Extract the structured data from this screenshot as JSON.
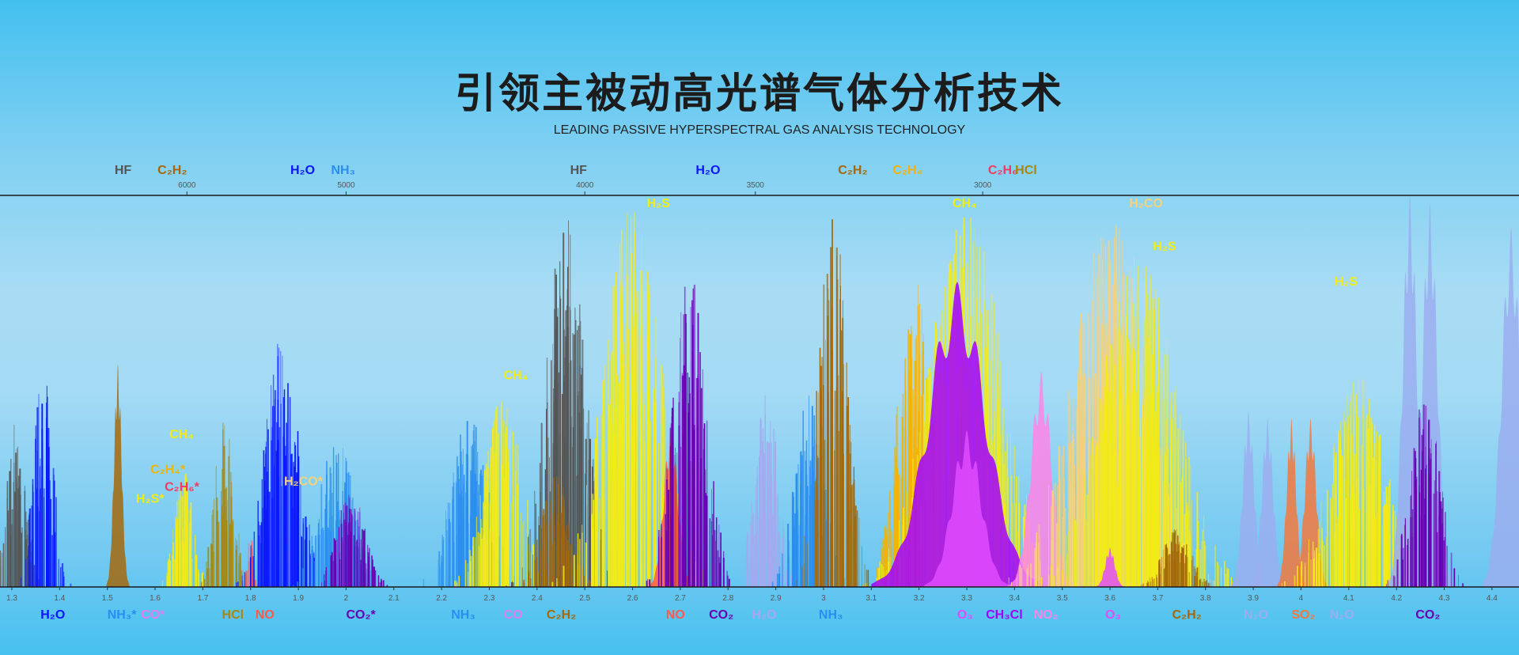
{
  "header": {
    "title": "引领主被动高光谱气体分析技术",
    "subtitle": "LEADING PASSIVE HYPERSPECTRAL GAS ANALYSIS TECHNOLOGY"
  },
  "chart_data": {
    "type": "area",
    "xlabel": "",
    "ylabel": "",
    "xlim": [
      1.28,
      4.46
    ],
    "x_ticks": [
      1.3,
      1.4,
      1.5,
      1.6,
      1.7,
      1.8,
      1.9,
      2.0,
      2.1,
      2.2,
      2.3,
      2.4,
      2.5,
      2.6,
      2.7,
      2.8,
      2.9,
      3.0,
      3.1,
      3.2,
      3.3,
      3.4,
      3.5,
      3.6,
      3.7,
      3.8,
      3.9,
      4.0,
      4.1,
      4.2,
      4.3,
      4.4
    ],
    "top_ticks": [
      6000,
      5000,
      4000,
      3500,
      3000
    ],
    "colors": {
      "H2O": "#0a14ff",
      "NH3": "#2a8ef0",
      "C2H2": "#a4680a",
      "CH4": "#f3ec14",
      "C2H4": "#f6b300",
      "C2H6": "#f23a5e",
      "HCl": "#a8870e",
      "NO": "#ff5a4c",
      "CO2": "#6a00b4",
      "CO": "#e07ef2",
      "H2CO": "#f6d27a",
      "H2S": "#f3ec14",
      "O3": "#e04cff",
      "CH3Cl": "#a200ff",
      "NO2": "#ff84e8",
      "N2O": "#9aaef0",
      "SO2": "#f2783e",
      "HF": "#555555",
      "H2O_light": "#a7a8f0"
    },
    "bands": [
      {
        "gas": "HF",
        "center": 1.31,
        "width": 0.02,
        "peak": 0.45,
        "style": "lines"
      },
      {
        "gas": "H2O",
        "center": 1.366,
        "width": 0.02,
        "peak": 0.58,
        "style": "lines"
      },
      {
        "gas": "C2H2",
        "center": 1.522,
        "width": 0.008,
        "peak": 0.57,
        "style": "solid"
      },
      {
        "gas": "CH4",
        "center": 1.66,
        "width": 0.02,
        "peak": 0.3,
        "style": "lines"
      },
      {
        "gas": "HCl",
        "center": 1.745,
        "width": 0.02,
        "peak": 0.45,
        "style": "lines"
      },
      {
        "gas": "NO",
        "center": 1.8,
        "width": 0.006,
        "peak": 0.15,
        "style": "lines"
      },
      {
        "gas": "H2O",
        "center": 1.865,
        "width": 0.035,
        "peak": 0.64,
        "style": "lines"
      },
      {
        "gas": "NH3",
        "center": 1.98,
        "width": 0.035,
        "peak": 0.4,
        "style": "lines"
      },
      {
        "gas": "CO2",
        "center": 2.01,
        "width": 0.03,
        "peak": 0.25,
        "style": "lines"
      },
      {
        "gas": "NH3",
        "center": 2.26,
        "width": 0.04,
        "peak": 0.45,
        "style": "lines"
      },
      {
        "gas": "CH4",
        "center": 2.33,
        "width": 0.04,
        "peak": 0.5,
        "style": "lines"
      },
      {
        "gas": "HF",
        "center": 2.46,
        "width": 0.04,
        "peak": 0.95,
        "style": "lines"
      },
      {
        "gas": "C2H2",
        "center": 2.44,
        "width": 0.03,
        "peak": 0.3,
        "style": "lines"
      },
      {
        "gas": "H2S",
        "center": 2.6,
        "width": 0.06,
        "peak": 0.98,
        "style": "lines"
      },
      {
        "gas": "NO",
        "center": 2.68,
        "width": 0.015,
        "peak": 0.4,
        "style": "solid"
      },
      {
        "gas": "CO2",
        "center": 2.72,
        "width": 0.035,
        "peak": 0.82,
        "style": "lines"
      },
      {
        "gas": "H2O_light",
        "center": 2.88,
        "width": 0.025,
        "peak": 0.5,
        "style": "lines"
      },
      {
        "gas": "NH3",
        "center": 2.97,
        "width": 0.03,
        "peak": 0.5,
        "style": "lines"
      },
      {
        "gas": "C2H2",
        "center": 3.02,
        "width": 0.03,
        "peak": 1.0,
        "style": "lines"
      },
      {
        "gas": "C2H4",
        "center": 3.19,
        "width": 0.035,
        "peak": 0.8,
        "style": "lines"
      },
      {
        "gas": "CH4",
        "center": 3.3,
        "width": 0.08,
        "peak": 0.95,
        "style": "lines"
      },
      {
        "gas": "CH3Cl",
        "center": 3.28,
        "width": 0.06,
        "peak": 0.78,
        "style": "solid"
      },
      {
        "gas": "O3",
        "center": 3.3,
        "width": 0.03,
        "peak": 0.4,
        "style": "solid"
      },
      {
        "gas": "NO2",
        "center": 3.456,
        "width": 0.022,
        "peak": 0.55,
        "style": "solid"
      },
      {
        "gas": "H2CO",
        "center": 3.6,
        "width": 0.08,
        "peak": 0.95,
        "style": "lines"
      },
      {
        "gas": "H2S",
        "center": 3.66,
        "width": 0.08,
        "peak": 0.85,
        "style": "lines"
      },
      {
        "gas": "O3",
        "center": 3.6,
        "width": 0.01,
        "peak": 0.1,
        "style": "solid"
      },
      {
        "gas": "C2H2",
        "center": 3.74,
        "width": 0.03,
        "peak": 0.15,
        "style": "lines"
      },
      {
        "gas": "N2O",
        "center": 3.89,
        "width": 0.012,
        "peak": 0.45,
        "style": "solid"
      },
      {
        "gas": "N2O",
        "center": 3.93,
        "width": 0.012,
        "peak": 0.43,
        "style": "solid"
      },
      {
        "gas": "SO2",
        "center": 3.98,
        "width": 0.01,
        "peak": 0.43,
        "style": "solid"
      },
      {
        "gas": "SO2",
        "center": 4.02,
        "width": 0.012,
        "peak": 0.43,
        "style": "solid"
      },
      {
        "gas": "H2S",
        "center": 4.12,
        "width": 0.06,
        "peak": 0.55,
        "style": "lines"
      },
      {
        "gas": "N2O",
        "center": 4.228,
        "width": 0.015,
        "peak": 1.0,
        "style": "solid"
      },
      {
        "gas": "N2O",
        "center": 4.27,
        "width": 0.016,
        "peak": 0.98,
        "style": "solid"
      },
      {
        "gas": "CO2",
        "center": 4.26,
        "width": 0.03,
        "peak": 0.52,
        "style": "lines"
      },
      {
        "gas": "N2O",
        "center": 4.44,
        "width": 0.02,
        "peak": 0.92,
        "style": "solid"
      }
    ],
    "top_labels": [
      {
        "text": "HF",
        "gas": "HF",
        "at": 6600
      },
      {
        "text": "C₂H₂",
        "gas": "C2H2",
        "at": 6230
      },
      {
        "text": "H₂O",
        "gas": "H2O",
        "at": 5310
      },
      {
        "text": "NH₃",
        "gas": "NH3",
        "at": 5080
      },
      {
        "text": "HF",
        "gas": "HF",
        "at": 4050
      },
      {
        "text": "H₂O",
        "gas": "H2O",
        "at": 3660
      },
      {
        "text": "C₂H₂",
        "gas": "C2H2",
        "at": 3300
      },
      {
        "text": "C₂H₄",
        "gas": "C2H4",
        "at": 3180
      },
      {
        "text": "C₂H₆",
        "gas": "C2H6",
        "at": 2990
      },
      {
        "text": "HCl",
        "gas": "HCl",
        "at": 2940
      }
    ],
    "bottom_labels": [
      {
        "text": "H₂O",
        "gas": "H2O",
        "at": 1.36
      },
      {
        "text": "NH₃*",
        "gas": "NH3",
        "at": 1.5
      },
      {
        "text": "CO*",
        "gas": "CO",
        "at": 1.57
      },
      {
        "text": "HCl",
        "gas": "HCl",
        "at": 1.74
      },
      {
        "text": "NO",
        "gas": "NO",
        "at": 1.81
      },
      {
        "text": "CO₂*",
        "gas": "CO2",
        "at": 2.0
      },
      {
        "text": "NH₃",
        "gas": "NH3",
        "at": 2.22
      },
      {
        "text": "CO",
        "gas": "CO",
        "at": 2.33
      },
      {
        "text": "C₂H₂",
        "gas": "C2H2",
        "at": 2.42
      },
      {
        "text": "NO",
        "gas": "NO",
        "at": 2.67
      },
      {
        "text": "CO₂",
        "gas": "CO2",
        "at": 2.76
      },
      {
        "text": "H₂O",
        "gas": "H2O_light",
        "at": 2.85
      },
      {
        "text": "NH₃",
        "gas": "NH3",
        "at": 2.99
      },
      {
        "text": "O₃",
        "gas": "O3",
        "at": 3.28
      },
      {
        "text": "CH₃Cl",
        "gas": "CH3Cl",
        "at": 3.34
      },
      {
        "text": "NO₂",
        "gas": "NO2",
        "at": 3.44
      },
      {
        "text": "O₃",
        "gas": "O3",
        "at": 3.59
      },
      {
        "text": "C₂H₂",
        "gas": "C2H2",
        "at": 3.73
      },
      {
        "text": "N₂O",
        "gas": "N2O",
        "at": 3.88
      },
      {
        "text": "SO₂",
        "gas": "SO2",
        "at": 3.98
      },
      {
        "text": "N₂O",
        "gas": "N2O",
        "at": 4.06
      },
      {
        "text": "CO₂",
        "gas": "CO2",
        "at": 4.24
      }
    ],
    "annotations": [
      {
        "text": "H₂S",
        "gas": "H2S",
        "at": 2.63,
        "level": 0.97
      },
      {
        "text": "CH₄",
        "gas": "CH4",
        "at": 2.33,
        "level": 0.53
      },
      {
        "text": "CH₄",
        "gas": "CH4",
        "at": 1.63,
        "level": 0.38
      },
      {
        "text": "C₂H₄*",
        "gas": "C2H4",
        "at": 1.59,
        "level": 0.29
      },
      {
        "text": "C₂H₆*",
        "gas": "C2H6",
        "at": 1.62,
        "level": 0.245
      },
      {
        "text": "H₂S*",
        "gas": "H2S",
        "at": 1.56,
        "level": 0.215
      },
      {
        "text": "H₂CO*",
        "gas": "H2CO",
        "at": 1.87,
        "level": 0.26
      },
      {
        "text": "CH₄",
        "gas": "CH4",
        "at": 3.27,
        "level": 0.97
      },
      {
        "text": "H₂CO",
        "gas": "H2CO",
        "at": 3.64,
        "level": 0.97
      },
      {
        "text": "H₂S",
        "gas": "H2S",
        "at": 3.69,
        "level": 0.86
      },
      {
        "text": "H₂S",
        "gas": "H2S",
        "at": 4.07,
        "level": 0.77
      }
    ]
  }
}
